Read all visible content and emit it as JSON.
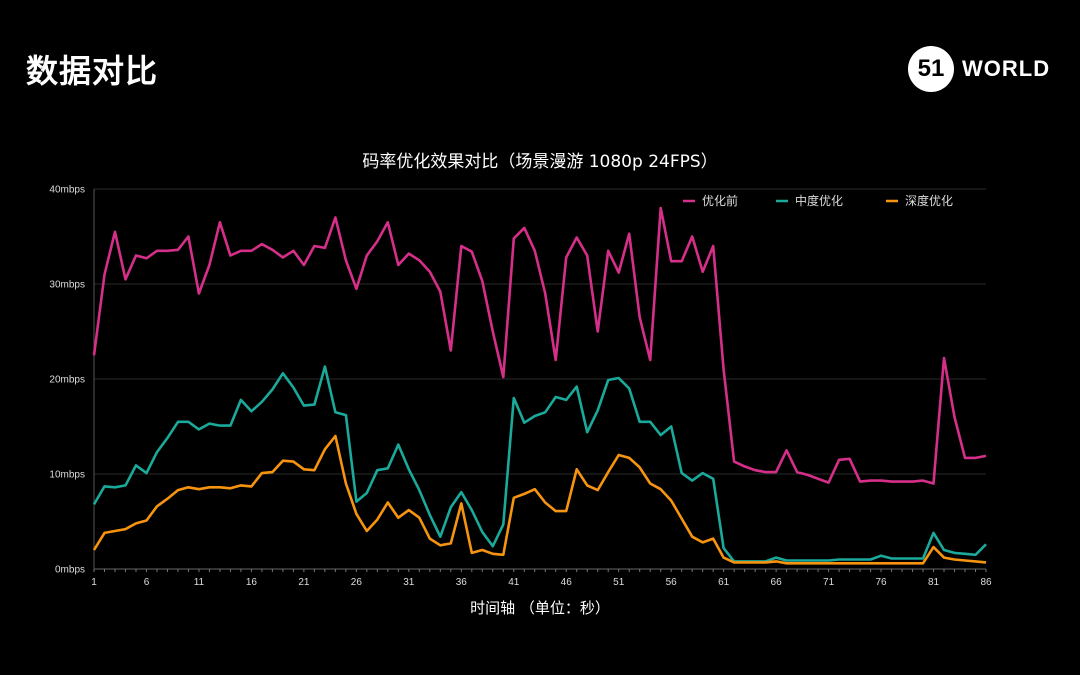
{
  "page": {
    "title": "数据对比"
  },
  "logo": {
    "mark": "51",
    "text": "WORLD"
  },
  "chart_data": {
    "type": "line",
    "title": "码率优化效果对比（场景漫游 1080p 24FPS）",
    "xlabel": "时间轴 （单位：秒）",
    "ylabel": "",
    "ylim": [
      0,
      40
    ],
    "xlim": [
      1,
      86
    ],
    "yticks": [
      "0mbps",
      "10mbps",
      "20mbps",
      "30mbps",
      "40mbps"
    ],
    "xticks": [
      "1",
      "6",
      "11",
      "16",
      "21",
      "26",
      "31",
      "36",
      "41",
      "46",
      "51",
      "56",
      "61",
      "66",
      "71",
      "76",
      "81",
      "86"
    ],
    "grid": true,
    "legend_position": "top-right",
    "series": [
      {
        "name": "优化前",
        "color": "#d62f8a",
        "values": [
          22.5,
          31,
          35.5,
          30.5,
          33,
          32.7,
          33.5,
          33.5,
          33.6,
          35,
          29,
          32,
          36.5,
          33,
          33.5,
          33.5,
          34.2,
          33.6,
          32.8,
          33.5,
          32,
          34,
          33.8,
          37,
          32.5,
          29.5,
          33,
          34.5,
          36.5,
          32,
          33.2,
          32.5,
          31.3,
          29.2,
          23,
          34,
          33.4,
          30.3,
          25,
          20.2,
          34.8,
          35.9,
          33.5,
          29,
          22,
          32.8,
          34.9,
          33,
          25,
          33.5,
          31.2,
          35.3,
          26.5,
          22,
          38,
          32.4,
          32.4,
          35,
          31.3,
          34,
          21,
          11.3,
          10.8,
          10.4,
          10.2,
          10.2,
          12.5,
          10.2,
          9.9,
          9.5,
          9.1,
          11.5,
          11.6,
          9.2,
          9.3,
          9.3,
          9.2,
          9.2,
          9.2,
          9.3,
          9,
          22.2,
          16,
          11.7,
          11.7,
          11.9
        ]
      },
      {
        "name": "中度优化",
        "color": "#1aa99a",
        "values": [
          6.8,
          8.7,
          8.6,
          8.8,
          10.9,
          10.1,
          12.3,
          13.8,
          15.5,
          15.5,
          14.7,
          15.3,
          15.1,
          15.1,
          17.8,
          16.6,
          17.6,
          18.9,
          20.6,
          19.1,
          17.2,
          17.3,
          21.3,
          16.5,
          16.2,
          7.1,
          8,
          10.4,
          10.6,
          13.1,
          10.5,
          8.3,
          5.7,
          3.4,
          6.5,
          8.1,
          6.2,
          3.9,
          2.4,
          4.7,
          18,
          15.4,
          16.1,
          16.5,
          18.1,
          17.8,
          19.2,
          14.4,
          16.7,
          19.9,
          20.1,
          19,
          15.5,
          15.5,
          14.1,
          15,
          10.1,
          9.3,
          10.1,
          9.5,
          2.2,
          0.8,
          0.8,
          0.8,
          0.8,
          1.2,
          0.9,
          0.9,
          0.9,
          0.9,
          0.9,
          1,
          1,
          1,
          1,
          1.4,
          1.1,
          1.1,
          1.1,
          1.1,
          3.8,
          2,
          1.7,
          1.6,
          1.5,
          2.6
        ]
      },
      {
        "name": "深度优化",
        "color": "#f7940f",
        "values": [
          2,
          3.8,
          4,
          4.2,
          4.8,
          5.1,
          6.6,
          7.4,
          8.3,
          8.6,
          8.4,
          8.6,
          8.6,
          8.5,
          8.8,
          8.7,
          10.1,
          10.2,
          11.4,
          11.3,
          10.5,
          10.4,
          12.6,
          14,
          9,
          5.8,
          4,
          5.2,
          7,
          5.4,
          6.2,
          5.4,
          3.2,
          2.5,
          2.7,
          6.9,
          1.7,
          2,
          1.6,
          1.5,
          7.5,
          7.9,
          8.4,
          7,
          6.1,
          6.1,
          10.5,
          8.8,
          8.3,
          10.2,
          12,
          11.7,
          10.7,
          9,
          8.4,
          7.2,
          5.3,
          3.4,
          2.8,
          3.2,
          1.2,
          0.7,
          0.7,
          0.7,
          0.7,
          0.8,
          0.6,
          0.6,
          0.6,
          0.6,
          0.6,
          0.6,
          0.6,
          0.6,
          0.6,
          0.6,
          0.6,
          0.6,
          0.6,
          0.6,
          2.3,
          1.2,
          1,
          0.9,
          0.8,
          0.7
        ]
      }
    ]
  }
}
